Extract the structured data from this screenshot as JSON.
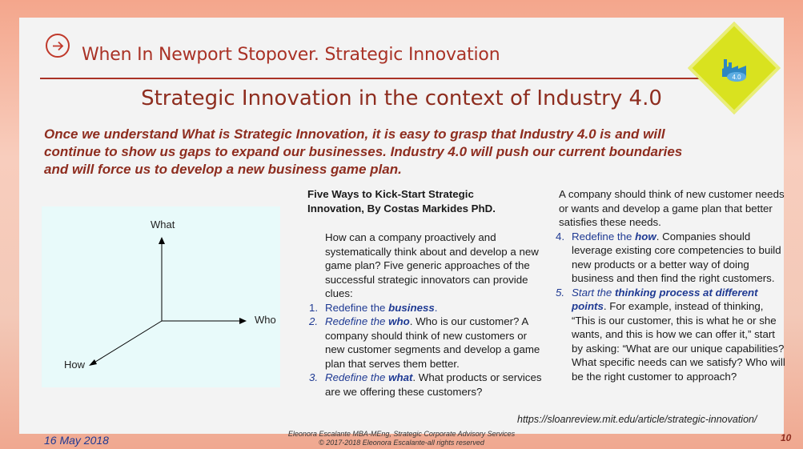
{
  "header": {
    "title": "When In Newport Stopover. Strategic Innovation"
  },
  "main_title": "Strategic Innovation in the context of Industry 4.0",
  "intro": "Once we understand What is Strategic Innovation, it is easy to grasp that Industry 4.0 is and will continue to show us gaps to expand our businesses. Industry 4.0 will push our current boundaries and will force us to develop a new business game plan.",
  "badge": {
    "icon": "factory-4-0-icon",
    "label": "4.0",
    "color": "#d9e21f"
  },
  "diagram": {
    "labels": {
      "what": "What",
      "who": "Who",
      "how": "How"
    }
  },
  "article": {
    "heading_line1": "Five Ways to Kick-Start Strategic",
    "heading_line2": "Innovation, By Costas Markides PhD.",
    "lead": "How can a company proactively and systematically think about and develop a new game plan? Five generic approaches of the successful strategic innovators can provide clues:",
    "items": [
      {
        "num": "1.",
        "pre": "Redefine the ",
        "key": "business",
        "rest": "."
      },
      {
        "num": "2.",
        "pre": "Redefine the ",
        "key": "who",
        "rest": ". Who is our customer? A company should think of new customers or new customer segments and develop a game plan that serves them better."
      },
      {
        "num": "3.",
        "pre": "Redefine the ",
        "key": "what",
        "rest": ". What products or services are we offering these customers?"
      }
    ],
    "col2_cont": "A company should think of new customer needs or wants and develop a game plan that better satisfies these needs.",
    "items2": [
      {
        "num": "4.",
        "pre": "Redefine the ",
        "key": "how",
        "rest": ". Companies should leverage existing core competencies to build new products or a better way of doing business and then find the right customers."
      },
      {
        "num": "5.",
        "pre": "Start the ",
        "key": "thinking process at different points",
        "rest": ". For example, instead of thinking, “This is our customer, this is what he or she wants, and this is how we can offer it,” start by asking: “What are our unique capabilities? What specific needs can we satisfy? Who will be the right customer to approach?"
      }
    ],
    "url": "https://sloanreview.mit.edu/article/strategic-innovation/"
  },
  "footer": {
    "date": "16 May 2018",
    "line1": "Eleonora Escalante MBA-MEng, Strategic Corporate Advisory Services",
    "line2": "© 2017-2018 Eleonora Escalante-all rights reserved",
    "page": "10"
  }
}
